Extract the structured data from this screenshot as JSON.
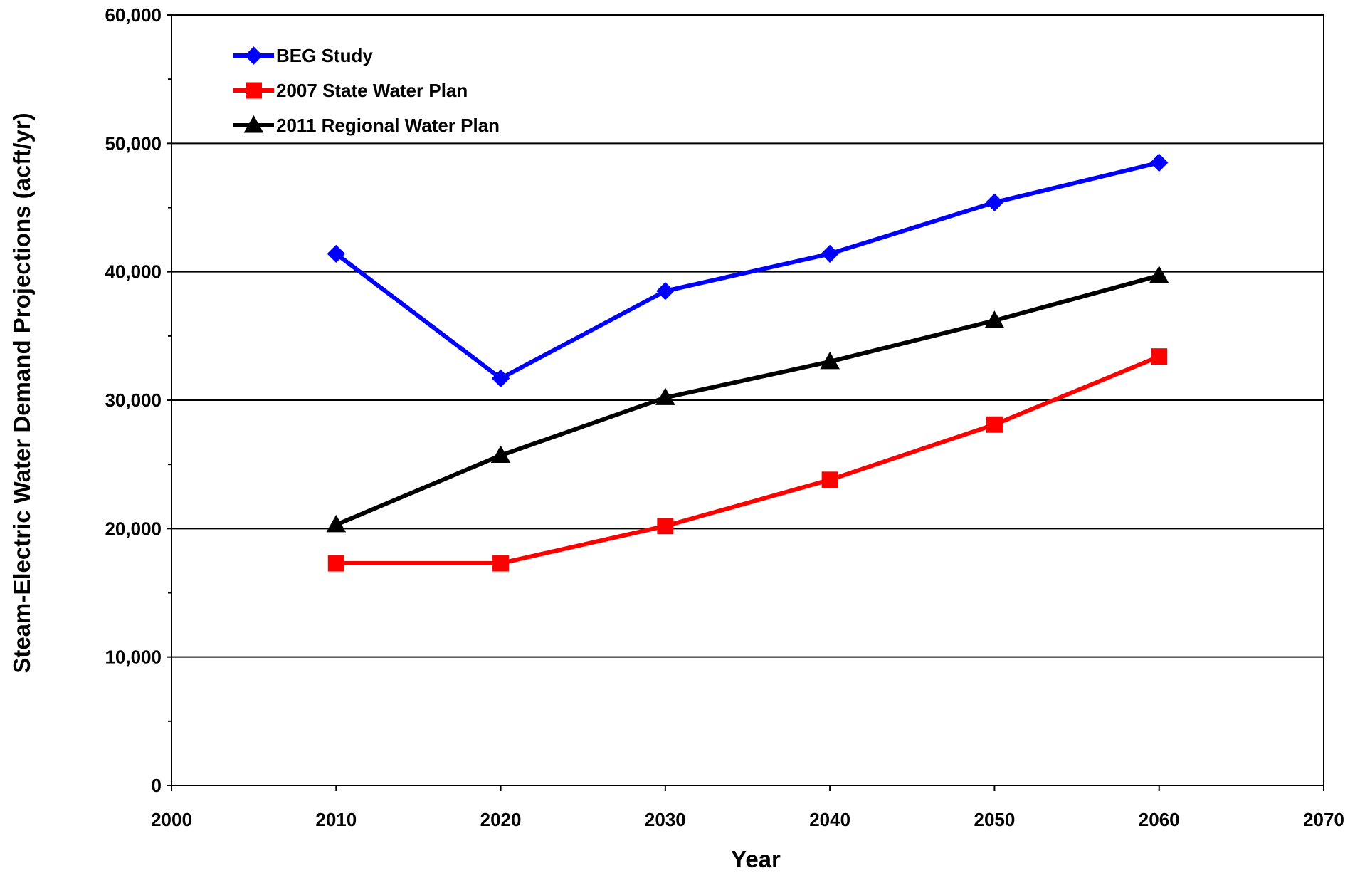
{
  "chart_data": {
    "type": "line",
    "title": "",
    "xlabel": "Year",
    "ylabel": "Steam-Electric Water Demand Projections (acft/yr)",
    "xlim": [
      2000,
      2070
    ],
    "ylim": [
      0,
      60000
    ],
    "x_ticks": [
      2000,
      2010,
      2020,
      2030,
      2040,
      2050,
      2060,
      2070
    ],
    "x_tick_labels": [
      "2000",
      "2010",
      "2020",
      "2030",
      "2040",
      "2050",
      "2060",
      "2070"
    ],
    "y_ticks": [
      0,
      10000,
      20000,
      30000,
      40000,
      50000,
      60000
    ],
    "y_tick_labels": [
      "0",
      "10,000",
      "20,000",
      "30,000",
      "40,000",
      "50,000",
      "60,000"
    ],
    "grid": "horizontal major gridlines",
    "legend_position": "top-left",
    "x": [
      2010,
      2020,
      2030,
      2040,
      2050,
      2060
    ],
    "series": [
      {
        "name": "BEG Study",
        "color": "#0000ff",
        "marker": "diamond",
        "values": [
          41400,
          31700,
          38500,
          41400,
          45400,
          48500
        ]
      },
      {
        "name": "2007 State Water Plan",
        "color": "#ff0000",
        "marker": "square",
        "values": [
          17300,
          17300,
          20200,
          23800,
          28100,
          33400
        ]
      },
      {
        "name": "2011 Regional Water Plan",
        "color": "#000000",
        "marker": "triangle",
        "values": [
          20300,
          25700,
          30200,
          33000,
          36200,
          39700
        ]
      }
    ]
  }
}
